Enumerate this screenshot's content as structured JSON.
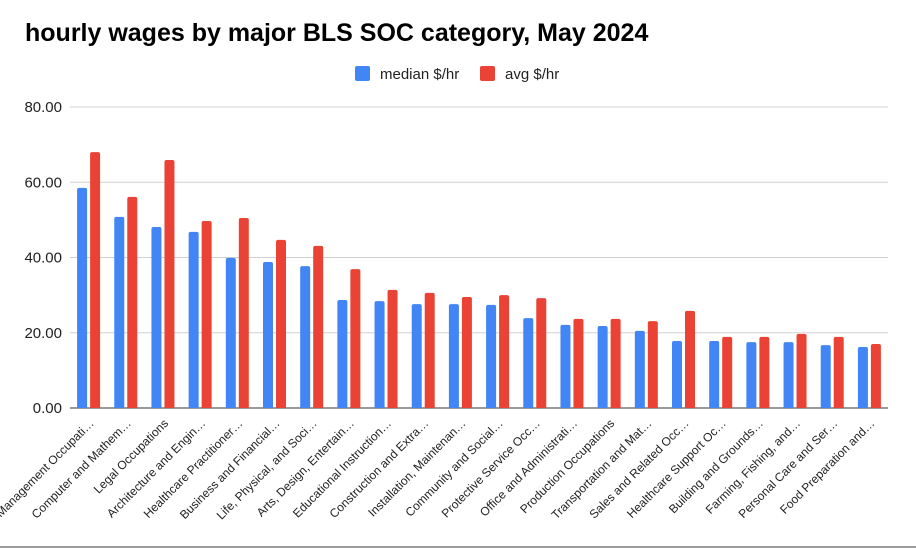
{
  "chart_data": {
    "type": "bar",
    "title": "hourly wages by major BLS SOC category, May 2024",
    "xlabel": "",
    "ylabel": "",
    "ylim": [
      0,
      80
    ],
    "yticks": [
      "0.00",
      "20.00",
      "40.00",
      "60.00",
      "80.00"
    ],
    "grid": true,
    "legend_position": "top",
    "categories": [
      "Management Occupati…",
      "Computer and Mathem…",
      "Legal Occupations",
      "Architecture and Engin…",
      "Healthcare Practitioner…",
      "Business and Financial…",
      "Life, Physical, and Soci…",
      "Arts, Design, Entertain…",
      "Educational Instruction…",
      "Construction and Extra…",
      "Installation, Maintenan…",
      "Community and Social…",
      "Protective Service Occ…",
      "Office and Administrati…",
      "Production Occupations",
      "Transportation and Mat…",
      "Sales and Related Occ…",
      "Healthcare Support Oc…",
      "Building and Grounds…",
      "Farming, Fishing, and…",
      "Personal Care and Ser…",
      "Food Preparation and…"
    ],
    "series": [
      {
        "name": "median $/hr",
        "color": "#4285f4",
        "values": [
          58.5,
          50.8,
          48.1,
          46.8,
          39.9,
          38.8,
          37.7,
          28.7,
          28.4,
          27.6,
          27.6,
          27.4,
          23.9,
          22.1,
          21.8,
          20.5,
          17.8,
          17.8,
          17.5,
          17.5,
          16.7,
          16.2
        ]
      },
      {
        "name": "avg $/hr",
        "color": "#ea4335",
        "values": [
          68.0,
          56.1,
          65.9,
          49.7,
          50.5,
          44.7,
          43.1,
          36.9,
          31.4,
          30.6,
          29.5,
          30.0,
          29.2,
          23.7,
          23.7,
          23.1,
          25.8,
          18.9,
          18.9,
          19.7,
          18.9,
          17.0
        ]
      }
    ]
  }
}
